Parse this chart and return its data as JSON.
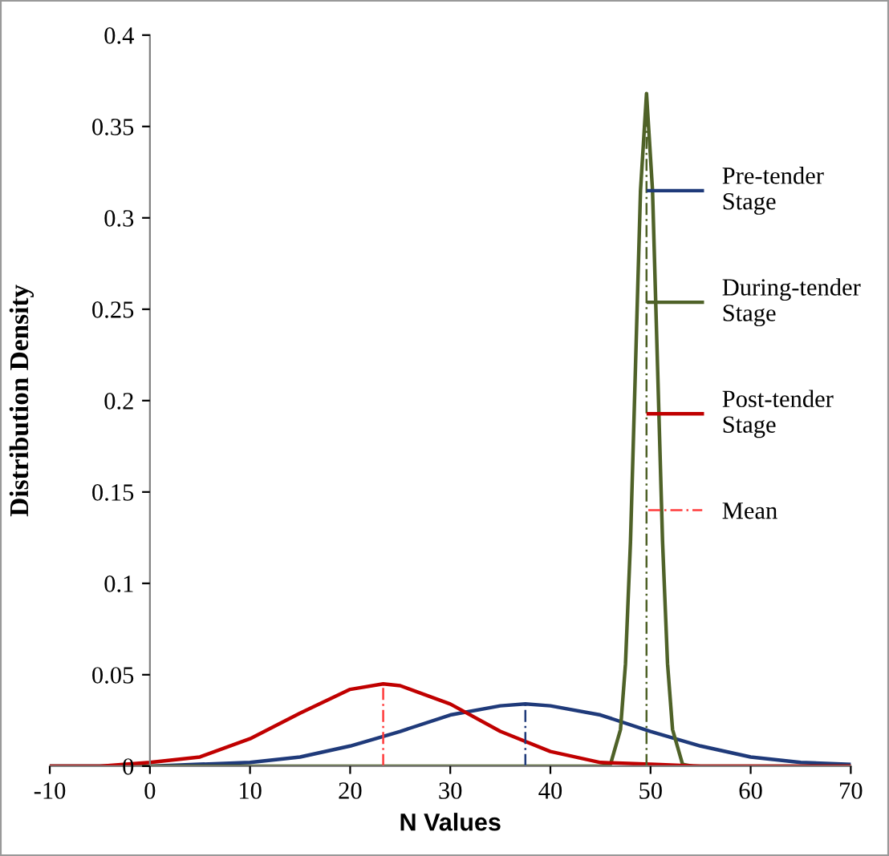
{
  "chart_data": {
    "type": "line",
    "xlabel": "N Values",
    "ylabel": "Distribution Density",
    "xlim": [
      -10,
      70
    ],
    "xticks": [
      -10,
      0,
      10,
      20,
      30,
      40,
      50,
      60,
      70
    ],
    "ylim": [
      0,
      0.4
    ],
    "yticks": [
      0,
      0.05,
      0.1,
      0.15,
      0.2,
      0.25,
      0.3,
      0.35,
      0.4
    ],
    "grid": false,
    "legend": "right",
    "marker": "none",
    "series": [
      {
        "name": "Pre-tender Stage",
        "color": "#1f3a7a",
        "x": [
          -10,
          0,
          5,
          10,
          15,
          20,
          25,
          30,
          35,
          37.5,
          40,
          45,
          50,
          55,
          60,
          65,
          70
        ],
        "values": [
          0,
          0,
          0.001,
          0.002,
          0.005,
          0.011,
          0.019,
          0.028,
          0.033,
          0.034,
          0.033,
          0.028,
          0.019,
          0.011,
          0.005,
          0.002,
          0.001
        ]
      },
      {
        "name": "During-tender Stage",
        "color": "#4f6228",
        "x": [
          -10,
          44,
          45,
          46,
          47,
          47.5,
          48,
          48.5,
          49,
          49.6,
          50.2,
          50.7,
          51.2,
          51.7,
          52.2,
          53.2,
          54.2,
          70
        ],
        "values": [
          0,
          0,
          0,
          0.001,
          0.02,
          0.056,
          0.123,
          0.219,
          0.315,
          0.368,
          0.315,
          0.219,
          0.123,
          0.056,
          0.02,
          0.001,
          0,
          0
        ]
      },
      {
        "name": "Post-tender Stage",
        "color": "#c00000",
        "x": [
          -10,
          -5,
          0,
          5,
          10,
          15,
          20,
          23.3,
          25,
          30,
          35,
          40,
          45,
          50,
          55,
          60,
          70
        ],
        "values": [
          0,
          0,
          0.002,
          0.005,
          0.015,
          0.029,
          0.042,
          0.045,
          0.044,
          0.034,
          0.019,
          0.008,
          0.002,
          0.001,
          0,
          0,
          0
        ]
      },
      {
        "name": "Mean",
        "color": "#ff3b3b",
        "line_style": "dashed",
        "x": [
          23.3,
          23.3
        ],
        "values": [
          0,
          0.045
        ]
      },
      {
        "color": "#1f3a7a",
        "line_style": "dashed",
        "x": [
          37.5,
          37.5
        ],
        "values": [
          0,
          0.034
        ]
      },
      {
        "color": "#4f6228",
        "line_style": "dashed",
        "x": [
          49.6,
          49.6
        ],
        "values": [
          0,
          0.368
        ]
      }
    ]
  }
}
